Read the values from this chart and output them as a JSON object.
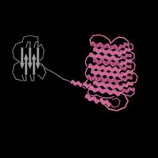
{
  "background_color": "#000000",
  "figsize": [
    2.0,
    2.0
  ],
  "dpi": 100,
  "pink": "#d4689a",
  "pink_light": "#e08ab0",
  "pink_dark": "#b04878",
  "gray": "#a0a0a0",
  "gray_light": "#c0c0c0",
  "gray_dark": "#686868",
  "helix_lw": 6.0,
  "loop_lw": 1.2,
  "strand_lw": 5.0
}
